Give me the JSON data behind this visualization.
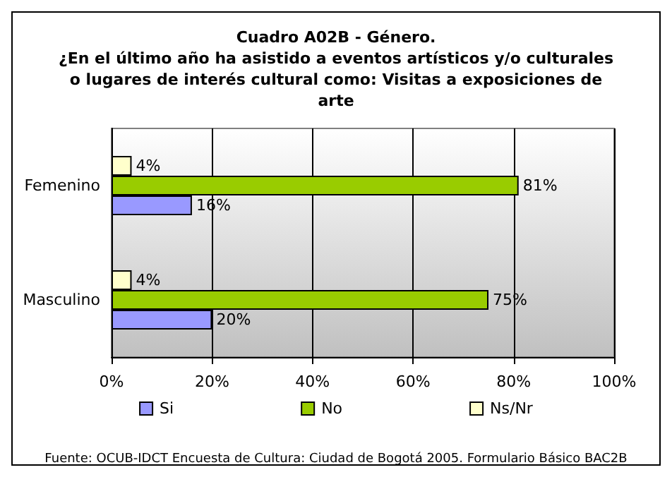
{
  "chart_data": {
    "type": "bar",
    "orientation": "horizontal",
    "title": "Cuadro A02B - Género.\n¿En el último año ha asistido a eventos artísticos y/o culturales\no lugares de interés cultural como: Visitas a exposiciones de\narte",
    "categories": [
      "Femenino",
      "Masculino"
    ],
    "series": [
      {
        "name": "Si",
        "color": "#9999ff",
        "values": [
          16,
          20
        ],
        "value_labels": [
          "16%",
          "20%"
        ]
      },
      {
        "name": "No",
        "color": "#99cc00",
        "values": [
          81,
          75
        ],
        "value_labels": [
          "81%",
          "75%"
        ]
      },
      {
        "name": "Ns/Nr",
        "color": "#ffffcc",
        "values": [
          4,
          4
        ],
        "value_labels": [
          "4%",
          "4%"
        ]
      }
    ],
    "xlim": [
      0,
      100
    ],
    "xticks": [
      {
        "value": 0,
        "label": "0%"
      },
      {
        "value": 20,
        "label": "20%"
      },
      {
        "value": 40,
        "label": "40%"
      },
      {
        "value": 60,
        "label": "60%"
      },
      {
        "value": 80,
        "label": "80%"
      },
      {
        "value": 100,
        "label": "100%"
      }
    ],
    "grid": "x",
    "legend": "bottom",
    "annotations": [
      "Fuente: OCUB-IDCT Encuesta de Cultura: Ciudad de Bogotá 2005. Formulario Básico BAC2B"
    ]
  }
}
